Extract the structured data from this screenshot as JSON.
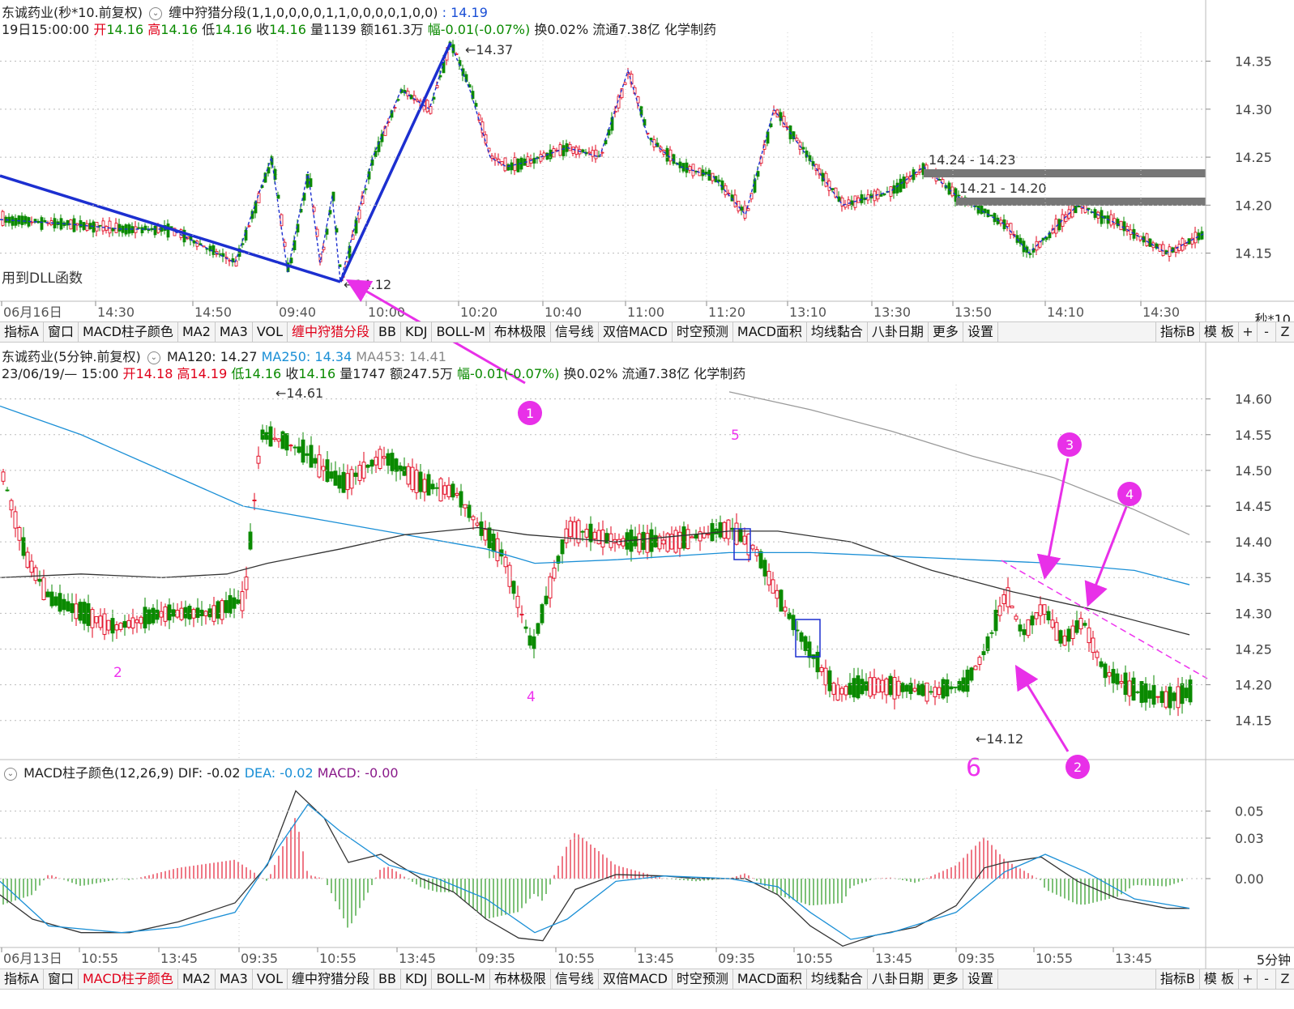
{
  "panel1": {
    "title": "东诚药业(秒*10.前复权)",
    "indicator": "缠中狩猎分段(1,1,0,0,0,0,1,1,0,0,0,0,1,0,0)",
    "indicator_value": ": 14.19",
    "info": {
      "time": "19日15:00:00",
      "open_label": "开",
      "open": "14.16",
      "high_label": "高",
      "high": "14.16",
      "low_label": "低",
      "low": "14.16",
      "close_label": "收",
      "close": "14.16",
      "volume": "量1139",
      "amount": "额161.3万",
      "change": "幅-0.01(-0.07%)",
      "turnover": "换0.02%",
      "float_cap": "流通7.38亿",
      "sector": "化学制药"
    },
    "y_ticks": [
      "14.35",
      "14.30",
      "14.25",
      "14.20",
      "14.15"
    ],
    "x_ticks": [
      "06月16日",
      "14:30",
      "14:50",
      "09:40",
      "10:00",
      "10:20",
      "10:40",
      "11:00",
      "11:20",
      "13:10",
      "13:30",
      "13:50",
      "14:10",
      "14:30"
    ],
    "period": "秒*10",
    "dll_note": "用到DLL函数",
    "annotations": {
      "high": "14.37",
      "low": "14.12",
      "zone1": "14.24 - 14.23",
      "zone2": "14.21 - 14.20"
    }
  },
  "tabs": [
    "指标A",
    "窗口",
    "MACD柱子颜色",
    "MA2",
    "MA3",
    "VOL",
    "缠中狩猎分段",
    "BB",
    "KDJ",
    "BOLL-M",
    "布林极限",
    "信号线",
    "双倍MACD",
    "时空预测",
    "MACD面积",
    "均线黏合",
    "八卦日期",
    "更多",
    "设置"
  ],
  "tabs_right": [
    "指标B",
    "模 板"
  ],
  "tab_buttons": [
    "+",
    "-",
    "Z"
  ],
  "panel2": {
    "title": "东诚药业(5分钟.前复权)",
    "ma120": "MA120: 14.27",
    "ma250": "MA250: 14.34",
    "ma453": "MA453: 14.41",
    "info": {
      "time": "23/06/19/— 15:00",
      "open_label": "开",
      "open": "14.18",
      "high_label": "高",
      "high": "14.19",
      "low_label": "低",
      "low": "14.16",
      "close_label": "收",
      "close": "14.16",
      "volume": "量1747",
      "amount": "额247.5万",
      "change": "幅-0.01(-0.07%)",
      "turnover": "换0.02%",
      "float_cap": "流通7.38亿",
      "sector": "化学制药"
    },
    "y_ticks": [
      "14.60",
      "14.55",
      "14.50",
      "14.45",
      "14.40",
      "14.35",
      "14.30",
      "14.25",
      "14.20",
      "14.15"
    ],
    "annotations": {
      "high": "14.61",
      "low": "14.12"
    },
    "labels": [
      "2",
      "4",
      "5",
      "6"
    ],
    "circle_markers": [
      "1",
      "2",
      "3",
      "4"
    ]
  },
  "panel3": {
    "title": "MACD柱子颜色(12,26,9)",
    "dif": "DIF: -0.02",
    "dea": "DEA: -0.02",
    "macd": "MACD: -0.00",
    "y_ticks": [
      "0.05",
      "0.03",
      "0.00"
    ],
    "x_ticks": [
      "06月13日",
      "10:55",
      "13:45",
      "09:35",
      "10:55",
      "13:45",
      "09:35",
      "10:55",
      "13:45",
      "09:35",
      "10:55",
      "13:45",
      "09:35",
      "10:55",
      "13:45"
    ],
    "period": "5分钟"
  },
  "tabs_bottom_active": "MACD柱子颜色",
  "tabs_top_active": "缠中狩猎分段",
  "colors": {
    "up": "#e0001a",
    "down": "#0a8a00",
    "ma_blue": "#1a8fd6",
    "ma_black": "#333333",
    "ma_gray": "#9a9a9a",
    "marker": "#ee33ee",
    "trend": "#1c2fd0"
  }
}
